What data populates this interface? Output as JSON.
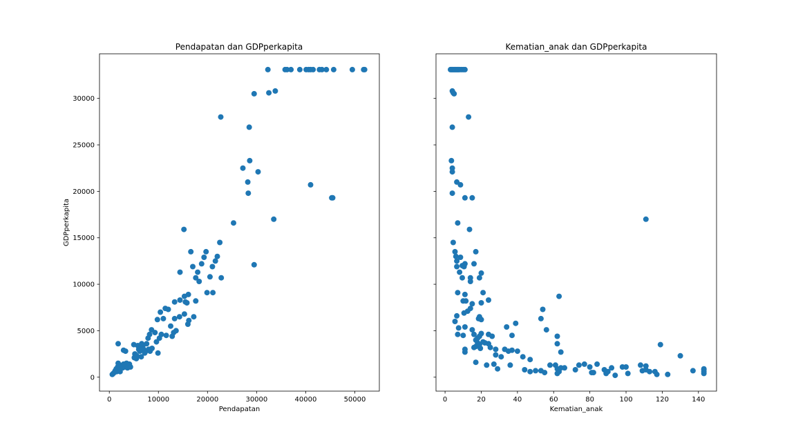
{
  "chart_data": [
    {
      "type": "scatter",
      "title": "Pendapatan dan GDPperkapita",
      "xlabel": "Pendapatan",
      "ylabel": "GDPperkapita",
      "xlim": [
        -2000,
        55000
      ],
      "ylim": [
        -1500,
        34800
      ],
      "x_ticks": [
        0,
        10000,
        20000,
        30000,
        40000,
        50000
      ],
      "y_ticks": [
        0,
        5000,
        10000,
        15000,
        20000,
        25000,
        30000
      ],
      "color": "#1f77b4",
      "grid": false,
      "points": [
        [
          600,
          300
        ],
        [
          800,
          400
        ],
        [
          1000,
          500
        ],
        [
          1200,
          700
        ],
        [
          1400,
          900
        ],
        [
          1500,
          600
        ],
        [
          1700,
          1100
        ],
        [
          1800,
          800
        ],
        [
          2000,
          1000
        ],
        [
          2100,
          1300
        ],
        [
          2300,
          900
        ],
        [
          2500,
          1200
        ],
        [
          2700,
          1000
        ],
        [
          2900,
          1400
        ],
        [
          3100,
          1100
        ],
        [
          3300,
          1300
        ],
        [
          3500,
          1500
        ],
        [
          3700,
          1000
        ],
        [
          3900,
          1200
        ],
        [
          4100,
          1400
        ],
        [
          4300,
          1100
        ],
        [
          1800,
          1500
        ],
        [
          2200,
          600
        ],
        [
          3000,
          1400
        ],
        [
          1800,
          3600
        ],
        [
          2900,
          2900
        ],
        [
          3300,
          2800
        ],
        [
          5000,
          3500
        ],
        [
          5200,
          2500
        ],
        [
          5500,
          2000
        ],
        [
          5800,
          3400
        ],
        [
          6000,
          3000
        ],
        [
          6200,
          2800
        ],
        [
          6500,
          2200
        ],
        [
          6800,
          3300
        ],
        [
          7000,
          3000
        ],
        [
          7300,
          2700
        ],
        [
          7600,
          3600
        ],
        [
          8000,
          3000
        ],
        [
          8300,
          2800
        ],
        [
          8700,
          3100
        ],
        [
          5100,
          2100
        ],
        [
          5600,
          2300
        ],
        [
          6100,
          3000
        ],
        [
          6600,
          3600
        ],
        [
          7200,
          2600
        ],
        [
          7900,
          4200
        ],
        [
          8200,
          4600
        ],
        [
          8600,
          5100
        ],
        [
          9300,
          4800
        ],
        [
          9600,
          3800
        ],
        [
          9900,
          2600
        ],
        [
          10200,
          4200
        ],
        [
          10600,
          4600
        ],
        [
          9800,
          6200
        ],
        [
          10400,
          7000
        ],
        [
          11000,
          6300
        ],
        [
          11400,
          7400
        ],
        [
          12000,
          7300
        ],
        [
          11600,
          4500
        ],
        [
          12500,
          5500
        ],
        [
          13100,
          4800
        ],
        [
          12800,
          4400
        ],
        [
          13300,
          6300
        ],
        [
          13600,
          5000
        ],
        [
          14300,
          6500
        ],
        [
          14400,
          8300
        ],
        [
          13300,
          8100
        ],
        [
          15300,
          6800
        ],
        [
          15300,
          8700
        ],
        [
          15800,
          8000
        ],
        [
          15500,
          8100
        ],
        [
          16100,
          8900
        ],
        [
          16000,
          5700
        ],
        [
          16200,
          6100
        ],
        [
          17200,
          6500
        ],
        [
          16600,
          13500
        ],
        [
          17000,
          11900
        ],
        [
          17600,
          8200
        ],
        [
          17600,
          10700
        ],
        [
          18000,
          11300
        ],
        [
          18300,
          10300
        ],
        [
          18800,
          12200
        ],
        [
          19300,
          12900
        ],
        [
          19700,
          13500
        ],
        [
          19900,
          9100
        ],
        [
          20500,
          10800
        ],
        [
          21100,
          9100
        ],
        [
          21000,
          11900
        ],
        [
          21600,
          12500
        ],
        [
          22000,
          13000
        ],
        [
          22500,
          14500
        ],
        [
          22800,
          10700
        ],
        [
          15200,
          15900
        ],
        [
          14400,
          11300
        ],
        [
          25300,
          16600
        ],
        [
          22700,
          28000
        ],
        [
          27200,
          22500
        ],
        [
          28200,
          21000
        ],
        [
          28300,
          19800
        ],
        [
          28600,
          23300
        ],
        [
          28500,
          26900
        ],
        [
          29500,
          30500
        ],
        [
          29500,
          12100
        ],
        [
          30300,
          22100
        ],
        [
          33500,
          17000
        ],
        [
          32500,
          30600
        ],
        [
          33800,
          30800
        ],
        [
          41000,
          20700
        ],
        [
          45300,
          19300
        ],
        [
          45500,
          19300
        ],
        [
          32300,
          33100
        ],
        [
          35800,
          33100
        ],
        [
          36200,
          33100
        ],
        [
          37000,
          33100
        ],
        [
          38800,
          33100
        ],
        [
          40100,
          33100
        ],
        [
          40600,
          33100
        ],
        [
          41000,
          33100
        ],
        [
          41500,
          33100
        ],
        [
          42800,
          33100
        ],
        [
          43300,
          33100
        ],
        [
          44200,
          33100
        ],
        [
          45700,
          33100
        ],
        [
          49500,
          33100
        ],
        [
          51800,
          33100
        ],
        [
          52000,
          33100
        ]
      ]
    },
    {
      "type": "scatter",
      "title": "Kematian_anak dan GDPperkapita",
      "xlabel": "Kematian_anak",
      "ylabel": "",
      "xlim": [
        -5,
        150
      ],
      "ylim": [
        -1500,
        34800
      ],
      "x_ticks": [
        0,
        20,
        40,
        60,
        80,
        100,
        120,
        140
      ],
      "y_ticks": [
        0,
        5000,
        10000,
        15000,
        20000,
        25000,
        30000
      ],
      "color": "#1f77b4",
      "grid": false,
      "points": [
        [
          3,
          33100
        ],
        [
          3.5,
          33100
        ],
        [
          4,
          33100
        ],
        [
          4.5,
          33100
        ],
        [
          5,
          33100
        ],
        [
          5.5,
          33100
        ],
        [
          6,
          33100
        ],
        [
          6.5,
          33100
        ],
        [
          7,
          33100
        ],
        [
          7.5,
          33100
        ],
        [
          8,
          33100
        ],
        [
          9,
          33100
        ],
        [
          10,
          33100
        ],
        [
          11,
          33100
        ],
        [
          4,
          30800
        ],
        [
          4.5,
          30600
        ],
        [
          5,
          30500
        ],
        [
          4,
          26900
        ],
        [
          13,
          28000
        ],
        [
          3.5,
          23300
        ],
        [
          4,
          22500
        ],
        [
          4,
          22100
        ],
        [
          6.5,
          21000
        ],
        [
          8.5,
          20700
        ],
        [
          4,
          19800
        ],
        [
          11,
          19300
        ],
        [
          15,
          19300
        ],
        [
          7,
          16600
        ],
        [
          13.5,
          15900
        ],
        [
          111,
          17000
        ],
        [
          4.5,
          14500
        ],
        [
          5.5,
          13500
        ],
        [
          6,
          13000
        ],
        [
          6.5,
          12500
        ],
        [
          6.5,
          11900
        ],
        [
          8.5,
          12900
        ],
        [
          9.5,
          12000
        ],
        [
          10.5,
          11900
        ],
        [
          11,
          12200
        ],
        [
          16,
          12200
        ],
        [
          17,
          13500
        ],
        [
          8,
          11300
        ],
        [
          9.5,
          10700
        ],
        [
          14,
          10700
        ],
        [
          19,
          10700
        ],
        [
          20,
          11200
        ],
        [
          14,
          10300
        ],
        [
          7,
          9100
        ],
        [
          11,
          8900
        ],
        [
          10,
          8200
        ],
        [
          11.5,
          8200
        ],
        [
          15,
          7900
        ],
        [
          20,
          8000
        ],
        [
          21,
          9100
        ],
        [
          24,
          8300
        ],
        [
          39,
          5800
        ],
        [
          63,
          8700
        ],
        [
          53,
          6300
        ],
        [
          54,
          7300
        ],
        [
          5.5,
          6000
        ],
        [
          6.5,
          6600
        ],
        [
          10.5,
          6900
        ],
        [
          12.5,
          7100
        ],
        [
          14,
          7400
        ],
        [
          18.5,
          6300
        ],
        [
          19,
          6500
        ],
        [
          20,
          6200
        ],
        [
          7.5,
          5300
        ],
        [
          11,
          5400
        ],
        [
          15,
          5100
        ],
        [
          16,
          4600
        ],
        [
          17,
          4000
        ],
        [
          18,
          4200
        ],
        [
          19,
          4400
        ],
        [
          20,
          4700
        ],
        [
          24,
          4600
        ],
        [
          26,
          4400
        ],
        [
          34,
          5400
        ],
        [
          37,
          4500
        ],
        [
          56,
          5100
        ],
        [
          62,
          4400
        ],
        [
          62,
          3600
        ],
        [
          7,
          4600
        ],
        [
          10,
          4500
        ],
        [
          17,
          3300
        ],
        [
          18,
          3700
        ],
        [
          19,
          3500
        ],
        [
          21,
          3800
        ],
        [
          24,
          3600
        ],
        [
          25,
          3200
        ],
        [
          28,
          3000
        ],
        [
          33,
          3000
        ],
        [
          35,
          2800
        ],
        [
          37,
          2900
        ],
        [
          40,
          2800
        ],
        [
          11,
          2700
        ],
        [
          16,
          3200
        ],
        [
          11,
          3000
        ],
        [
          19.5,
          3100
        ],
        [
          22,
          3700
        ],
        [
          28,
          2400
        ],
        [
          31,
          2200
        ],
        [
          36,
          1300
        ],
        [
          43,
          2200
        ],
        [
          47,
          1900
        ],
        [
          17,
          1600
        ],
        [
          23,
          1300
        ],
        [
          27,
          1400
        ],
        [
          29,
          900
        ],
        [
          44,
          800
        ],
        [
          47,
          600
        ],
        [
          50,
          700
        ],
        [
          53,
          700
        ],
        [
          55,
          500
        ],
        [
          58,
          1300
        ],
        [
          61,
          1300
        ],
        [
          62,
          900
        ],
        [
          63,
          600
        ],
        [
          64,
          1000
        ],
        [
          64,
          2700
        ],
        [
          62,
          400
        ],
        [
          66,
          1000
        ],
        [
          72,
          800
        ],
        [
          74,
          1300
        ],
        [
          77,
          1400
        ],
        [
          80,
          1100
        ],
        [
          81,
          500
        ],
        [
          82,
          500
        ],
        [
          84,
          1400
        ],
        [
          88,
          800
        ],
        [
          89,
          400
        ],
        [
          90,
          600
        ],
        [
          92,
          1000
        ],
        [
          94,
          200
        ],
        [
          98,
          1100
        ],
        [
          100,
          1100
        ],
        [
          101,
          400
        ],
        [
          108,
          1300
        ],
        [
          109,
          700
        ],
        [
          111,
          1200
        ],
        [
          111,
          800
        ],
        [
          113,
          600
        ],
        [
          116,
          600
        ],
        [
          117,
          300
        ],
        [
          119,
          3500
        ],
        [
          123,
          300
        ],
        [
          130,
          2300
        ],
        [
          137,
          700
        ],
        [
          143,
          900
        ],
        [
          143,
          600
        ],
        [
          143,
          400
        ],
        [
          143,
          800
        ]
      ]
    }
  ]
}
